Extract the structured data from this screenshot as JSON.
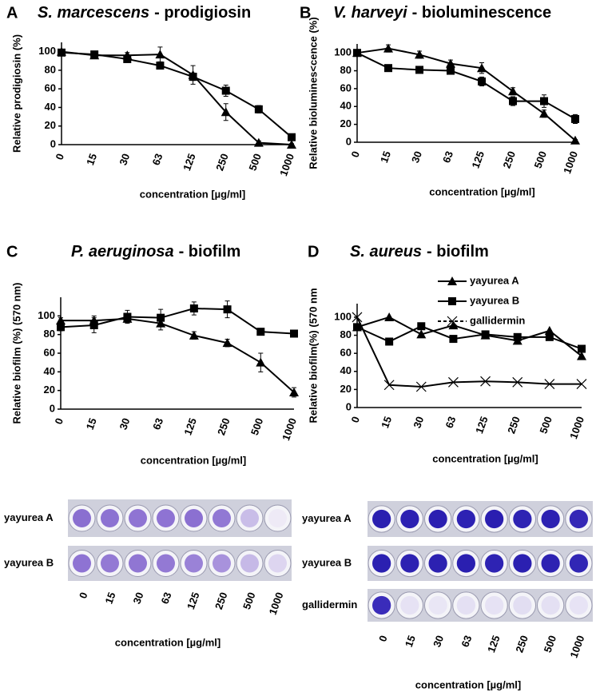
{
  "chart_data": [
    {
      "type": "line",
      "panel": "A",
      "title_italic": "S. marcescens",
      "title": "- prodigiosin",
      "ylabel": "Relative prodigiosin (%)",
      "xlabel": "concentration [µg/ml]",
      "categories": [
        "0",
        "15",
        "30",
        "63",
        "125",
        "250",
        "500",
        "1000"
      ],
      "ylim": [
        0,
        110
      ],
      "yticks": [
        0,
        20,
        40,
        60,
        80,
        100
      ],
      "series": [
        {
          "marker": "triangle",
          "color": "#000000",
          "values": [
            100,
            96,
            96,
            97,
            75,
            35,
            2,
            0
          ],
          "errors": [
            2,
            3,
            3,
            8,
            10,
            9,
            2,
            1
          ]
        },
        {
          "marker": "square",
          "color": "#000000",
          "values": [
            99,
            97,
            92,
            85,
            73,
            58,
            38,
            8
          ],
          "errors": [
            2,
            3,
            3,
            3,
            4,
            6,
            4,
            2
          ]
        }
      ]
    },
    {
      "type": "line",
      "panel": "B",
      "title_italic": "V. harveyi",
      "title": "- bioluminescence",
      "ylabel": "Relative biolumines<cence (%)",
      "xlabel": "concentration [µg/ml]",
      "categories": [
        "0",
        "15",
        "30",
        "63",
        "125",
        "250",
        "500",
        "1000"
      ],
      "ylim": [
        0,
        110
      ],
      "yticks": [
        0,
        20,
        40,
        60,
        80,
        100
      ],
      "series": [
        {
          "marker": "triangle",
          "color": "#000000",
          "values": [
            100,
            105,
            98,
            88,
            83,
            57,
            32,
            2
          ],
          "errors": [
            3,
            4,
            4,
            4,
            6,
            4,
            4,
            1
          ]
        },
        {
          "marker": "square",
          "color": "#000000",
          "values": [
            100,
            83,
            81,
            80,
            68,
            46,
            46,
            26
          ],
          "errors": [
            3,
            3,
            2,
            3,
            5,
            5,
            7,
            5
          ]
        }
      ]
    },
    {
      "type": "line",
      "panel": "C",
      "title_italic": "P. aeruginosa",
      "title": "- biofilm",
      "ylabel": "Relative biofilm (%) (570 nm)",
      "xlabel": "concentration [µg/ml]",
      "categories": [
        "0",
        "15",
        "30",
        "63",
        "125",
        "250",
        "500",
        "1000"
      ],
      "ylim": [
        0,
        120
      ],
      "yticks": [
        0,
        20,
        40,
        60,
        80,
        100
      ],
      "series": [
        {
          "marker": "triangle",
          "color": "#000000",
          "values": [
            95,
            95,
            97,
            92,
            79,
            71,
            50,
            18
          ],
          "errors": [
            3,
            5,
            4,
            7,
            4,
            4,
            10,
            5
          ]
        },
        {
          "marker": "square",
          "color": "#000000",
          "values": [
            88,
            90,
            99,
            98,
            108,
            107,
            83,
            81
          ],
          "errors": [
            4,
            8,
            7,
            9,
            7,
            9,
            2,
            2
          ]
        }
      ]
    },
    {
      "type": "line",
      "panel": "D",
      "title_italic": "S. aureus",
      "title": "- biofilm",
      "ylabel": "Relative biofilm(%) (570 nm",
      "xlabel": "concentration [µg/ml]",
      "categories": [
        "0",
        "15",
        "30",
        "63",
        "125",
        "250",
        "500",
        "1000"
      ],
      "ylim": [
        0,
        115
      ],
      "yticks": [
        0,
        20,
        40,
        60,
        80,
        100
      ],
      "legend": "upper right",
      "series": [
        {
          "name": "yayurea A",
          "marker": "triangle",
          "color": "#000000",
          "values": [
            89,
            100,
            81,
            91,
            80,
            74,
            85,
            57
          ]
        },
        {
          "name": "yayurea B",
          "marker": "square",
          "color": "#000000",
          "values": [
            89,
            73,
            90,
            76,
            81,
            78,
            78,
            65
          ]
        },
        {
          "name": "gallidermin",
          "marker": "x",
          "color": "#000000",
          "values": [
            100,
            25,
            23,
            28,
            29,
            28,
            26,
            26
          ]
        }
      ]
    }
  ],
  "plates": [
    {
      "rows": [
        "yayurea A",
        "yayurea B"
      ],
      "categories": [
        "0",
        "15",
        "30",
        "63",
        "125",
        "250",
        "500",
        "1000"
      ],
      "xlabel": "concentration [µg/ml]"
    },
    {
      "rows": [
        "yayurea A",
        "yayurea B",
        "gallidermin"
      ],
      "categories": [
        "0",
        "15",
        "30",
        "63",
        "125",
        "250",
        "500",
        "1000"
      ],
      "xlabel": "concentration [µg/ml]"
    }
  ]
}
